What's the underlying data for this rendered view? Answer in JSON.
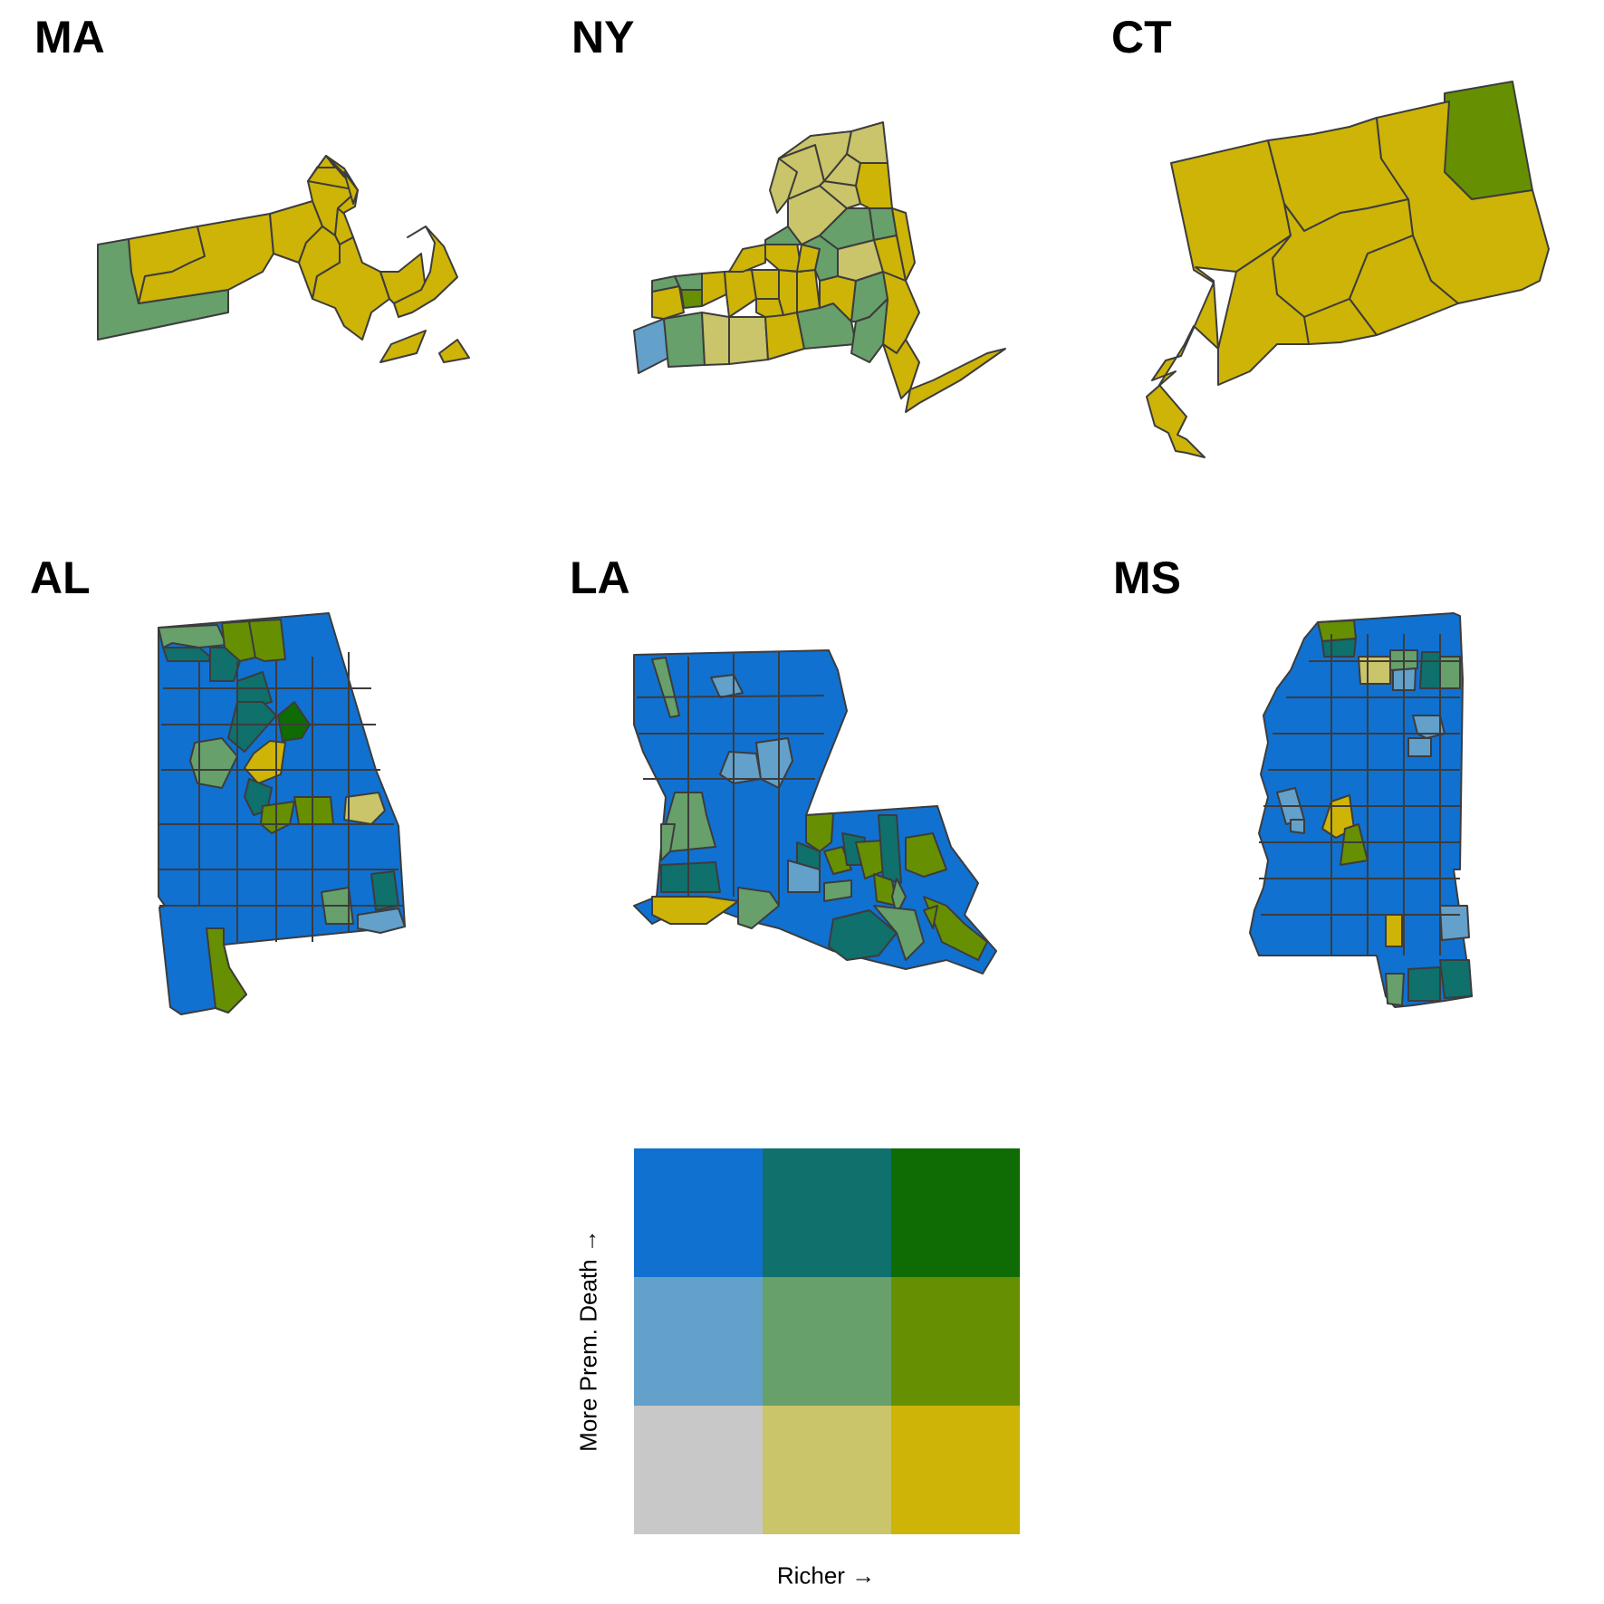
{
  "panels": {
    "ma": {
      "title": "MA"
    },
    "ny": {
      "title": "NY"
    },
    "ct": {
      "title": "CT"
    },
    "al": {
      "title": "AL"
    },
    "la": {
      "title": "LA"
    },
    "ms": {
      "title": "MS"
    }
  },
  "legend": {
    "x_label": "Richer →",
    "y_label": "More Prem. Death →",
    "grid_rows_top_to_bottom": [
      [
        "#1071d1",
        "#0f706c",
        "#0f6b03"
      ],
      [
        "#63a0ca",
        "#67a06a",
        "#678f02"
      ],
      [
        "#c8c8c8",
        "#cac46a",
        "#cdb407"
      ]
    ]
  },
  "colors": {
    "blue_dark": "#1071d1",
    "teal_dark": "#0f706c",
    "green_dark": "#0f6b03",
    "blue_mid": "#63a0ca",
    "teal_mid": "#67a06a",
    "green_mid": "#678f02",
    "grey_low": "#c8c8c8",
    "olive_low": "#cac46a",
    "gold_low": "#cdb407",
    "border": "#3c3c3c"
  }
}
